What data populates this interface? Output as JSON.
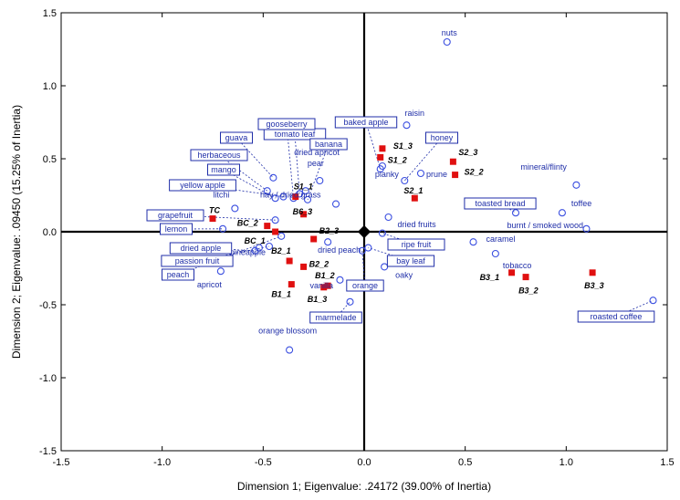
{
  "chart_data": {
    "type": "scatter",
    "xlabel": "Dimension 1; Eigenvalue: .24172 (39.00% of Inertia)",
    "ylabel": "Dimension 2; Eigenvalue: .09450 (15.25% of Inertia)",
    "xlim": [
      -1.5,
      1.5
    ],
    "ylim": [
      -1.5,
      1.5
    ],
    "xticks": [
      "-1.5",
      "-1.0",
      "-0.5",
      "0.0",
      "0.5",
      "1.0",
      "1.5"
    ],
    "yticks": [
      "1.5",
      "1.0",
      "0.5",
      "0.0",
      "-0.5",
      "-1.0",
      "-1.5"
    ],
    "grid": false,
    "colors": {
      "attribute": "#3b4fe0",
      "sample": "#e01010",
      "box": "#1f2ea8"
    },
    "attributes": [
      {
        "label": "nuts",
        "x": 0.41,
        "y": 1.3
      },
      {
        "label": "raisin",
        "x": 0.21,
        "y": 0.73
      },
      {
        "label": "planky",
        "x": 0.09,
        "y": 0.45
      },
      {
        "label": "prune",
        "x": 0.28,
        "y": 0.4
      },
      {
        "label": "mineral/flinty",
        "x": 1.05,
        "y": 0.32
      },
      {
        "label": "toffee",
        "x": 0.98,
        "y": 0.13
      },
      {
        "label": "burnt / smoked wood",
        "x": 1.1,
        "y": 0.02
      },
      {
        "label": "dried apricot",
        "x": -0.22,
        "y": 0.35
      },
      {
        "label": "pear",
        "x": -0.29,
        "y": 0.28
      },
      {
        "label": "hay / dried grass",
        "x": -0.14,
        "y": 0.19
      },
      {
        "label": "dried fruits",
        "x": 0.12,
        "y": 0.1
      },
      {
        "label": "litchi",
        "x": -0.64,
        "y": 0.16
      },
      {
        "label": "caramel",
        "x": 0.54,
        "y": -0.07
      },
      {
        "label": "tobacco",
        "x": 0.65,
        "y": -0.15
      },
      {
        "label": "dried peach",
        "x": -0.18,
        "y": -0.07
      },
      {
        "label": "pineapple",
        "x": -0.52,
        "y": -0.11
      },
      {
        "label": "oaky",
        "x": 0.1,
        "y": -0.24
      },
      {
        "label": "apricot",
        "x": -0.71,
        "y": -0.27
      },
      {
        "label": "vanilla",
        "x": -0.12,
        "y": -0.33
      },
      {
        "label": "orange blossom",
        "x": -0.37,
        "y": -0.81
      }
    ],
    "boxed_attributes": [
      {
        "label": "tomato leaf",
        "x": -0.32,
        "y": 0.26
      },
      {
        "label": "gooseberry",
        "x": -0.35,
        "y": 0.23
      },
      {
        "label": "guava",
        "x": -0.45,
        "y": 0.37
      },
      {
        "label": "herbaceous",
        "x": -0.48,
        "y": 0.28
      },
      {
        "label": "banana",
        "x": -0.28,
        "y": 0.22
      },
      {
        "label": "mango",
        "x": -0.44,
        "y": 0.23
      },
      {
        "label": "yellow apple",
        "x": -0.4,
        "y": 0.24
      },
      {
        "label": "baked apple",
        "x": 0.08,
        "y": 0.43
      },
      {
        "label": "honey",
        "x": 0.2,
        "y": 0.35
      },
      {
        "label": "toasted bread",
        "x": 0.75,
        "y": 0.13
      },
      {
        "label": "grapefruit",
        "x": -0.44,
        "y": 0.08
      },
      {
        "label": "lemon",
        "x": -0.7,
        "y": 0.02
      },
      {
        "label": "ripe fruit",
        "x": 0.09,
        "y": -0.01
      },
      {
        "label": "dried apple",
        "x": -0.54,
        "y": -0.13
      },
      {
        "label": "bay leaf",
        "x": 0.02,
        "y": -0.11
      },
      {
        "label": "passion fruit",
        "x": -0.47,
        "y": -0.1
      },
      {
        "label": "peach",
        "x": -0.41,
        "y": -0.03
      },
      {
        "label": "orange",
        "x": -0.01,
        "y": -0.13
      },
      {
        "label": "marmelade",
        "x": -0.07,
        "y": -0.48
      },
      {
        "label": "roasted coffee",
        "x": 1.43,
        "y": -0.47
      }
    ],
    "samples": [
      {
        "label": "TC",
        "x": -0.75,
        "y": 0.09
      },
      {
        "label": "BC_2",
        "x": -0.48,
        "y": 0.04
      },
      {
        "label": "BC_1",
        "x": -0.44,
        "y": 0.0
      },
      {
        "label": "S1_1",
        "x": -0.34,
        "y": 0.24
      },
      {
        "label": "B6_3",
        "x": -0.3,
        "y": 0.12
      },
      {
        "label": "B2_3",
        "x": -0.25,
        "y": -0.05
      },
      {
        "label": "B2_1",
        "x": -0.37,
        "y": -0.2
      },
      {
        "label": "B2_2",
        "x": -0.3,
        "y": -0.24
      },
      {
        "label": "B1_1",
        "x": -0.36,
        "y": -0.36
      },
      {
        "label": "B1_3",
        "x": -0.2,
        "y": -0.38
      },
      {
        "label": "B1_2",
        "x": -0.18,
        "y": -0.37
      },
      {
        "label": "S1_3",
        "x": 0.09,
        "y": 0.57
      },
      {
        "label": "S1_2",
        "x": 0.08,
        "y": 0.51
      },
      {
        "label": "S2_3",
        "x": 0.44,
        "y": 0.48
      },
      {
        "label": "S2_2",
        "x": 0.45,
        "y": 0.39
      },
      {
        "label": "S2_1",
        "x": 0.25,
        "y": 0.23
      },
      {
        "label": "B3_1",
        "x": 0.73,
        "y": -0.28
      },
      {
        "label": "B3_2",
        "x": 0.8,
        "y": -0.31
      },
      {
        "label": "B3_3",
        "x": 1.13,
        "y": -0.28
      }
    ]
  }
}
